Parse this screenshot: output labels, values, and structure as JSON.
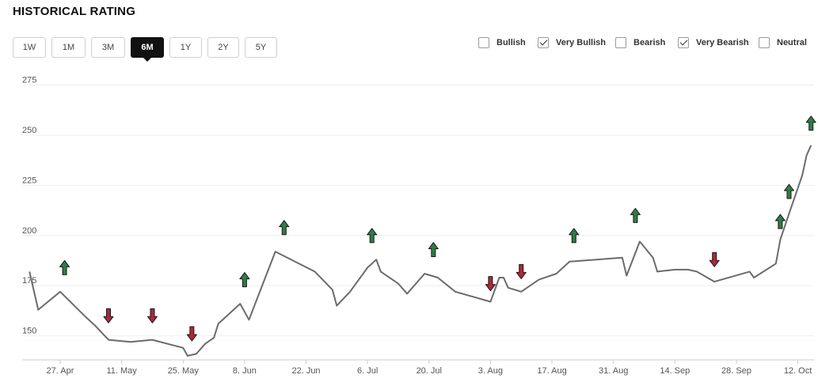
{
  "page": {
    "title": "HISTORICAL RATING"
  },
  "time_ranges": [
    {
      "label": "1W",
      "active": false
    },
    {
      "label": "1M",
      "active": false
    },
    {
      "label": "3M",
      "active": false
    },
    {
      "label": "6M",
      "active": true
    },
    {
      "label": "1Y",
      "active": false
    },
    {
      "label": "2Y",
      "active": false
    },
    {
      "label": "5Y",
      "active": false
    }
  ],
  "filters": [
    {
      "label": "Bullish",
      "checked": false
    },
    {
      "label": "Very Bullish",
      "checked": true
    },
    {
      "label": "Bearish",
      "checked": false
    },
    {
      "label": "Very Bearish",
      "checked": true
    },
    {
      "label": "Neutral",
      "checked": false
    }
  ],
  "colors": {
    "line": "#6b6b6b",
    "very_bullish_arrow": "#2e7d46",
    "very_bearish_arrow": "#b0253a",
    "grid": "#eeeeee"
  },
  "chart_data": {
    "type": "line",
    "title": "",
    "xlabel": "",
    "ylabel": "",
    "ylim": [
      138,
      278
    ],
    "yticks": [
      150,
      175,
      200,
      225,
      250,
      275
    ],
    "x_tick_labels": [
      "27. Apr",
      "11. May",
      "25. May",
      "8. Jun",
      "22. Jun",
      "6. Jul",
      "20. Jul",
      "3. Aug",
      "17. Aug",
      "31. Aug",
      "14. Sep",
      "28. Sep",
      "12. Oct"
    ],
    "x_tick_days": [
      0,
      14,
      28,
      42,
      56,
      70,
      84,
      98,
      112,
      126,
      140,
      154,
      168
    ],
    "grid": true,
    "series": [
      {
        "points": [
          [
            -7,
            182
          ],
          [
            -5,
            163
          ],
          [
            0,
            172
          ],
          [
            6,
            159
          ],
          [
            8,
            155
          ],
          [
            11,
            148
          ],
          [
            16,
            147
          ],
          [
            21,
            148
          ],
          [
            28,
            144
          ],
          [
            29,
            140
          ],
          [
            31,
            141
          ],
          [
            33,
            146
          ],
          [
            35,
            149
          ],
          [
            36,
            156
          ],
          [
            41,
            166
          ],
          [
            43,
            158
          ],
          [
            49,
            192
          ],
          [
            58,
            182
          ],
          [
            62,
            173
          ],
          [
            63,
            165
          ],
          [
            66,
            172
          ],
          [
            70,
            184
          ],
          [
            72,
            188
          ],
          [
            73,
            182
          ],
          [
            77,
            176
          ],
          [
            79,
            171
          ],
          [
            83,
            181
          ],
          [
            86,
            179
          ],
          [
            90,
            172
          ],
          [
            98,
            167
          ],
          [
            100,
            179
          ],
          [
            101,
            179
          ],
          [
            102,
            174
          ],
          [
            105,
            172
          ],
          [
            109,
            178
          ],
          [
            113,
            181
          ],
          [
            116,
            187
          ],
          [
            128,
            189
          ],
          [
            129,
            180
          ],
          [
            132,
            197
          ],
          [
            135,
            189
          ],
          [
            136,
            182
          ],
          [
            140,
            183
          ],
          [
            143,
            183
          ],
          [
            145,
            182
          ],
          [
            149,
            177
          ],
          [
            157,
            182
          ],
          [
            158,
            179
          ],
          [
            163,
            186
          ],
          [
            164,
            198
          ],
          [
            166,
            211
          ],
          [
            169,
            230
          ],
          [
            170,
            240
          ],
          [
            171,
            245
          ]
        ]
      }
    ],
    "markers": [
      {
        "day": 1,
        "value": 184,
        "kind": "very_bullish"
      },
      {
        "day": 11,
        "value": 160,
        "kind": "very_bearish"
      },
      {
        "day": 21,
        "value": 160,
        "kind": "very_bearish"
      },
      {
        "day": 30,
        "value": 151,
        "kind": "very_bearish"
      },
      {
        "day": 42,
        "value": 178,
        "kind": "very_bullish"
      },
      {
        "day": 51,
        "value": 204,
        "kind": "very_bullish"
      },
      {
        "day": 71,
        "value": 200,
        "kind": "very_bullish"
      },
      {
        "day": 85,
        "value": 193,
        "kind": "very_bullish"
      },
      {
        "day": 98,
        "value": 176,
        "kind": "very_bearish"
      },
      {
        "day": 105,
        "value": 182,
        "kind": "very_bearish"
      },
      {
        "day": 117,
        "value": 200,
        "kind": "very_bullish"
      },
      {
        "day": 131,
        "value": 210,
        "kind": "very_bullish"
      },
      {
        "day": 149,
        "value": 188,
        "kind": "very_bearish"
      },
      {
        "day": 164,
        "value": 207,
        "kind": "very_bullish"
      },
      {
        "day": 166,
        "value": 222,
        "kind": "very_bullish"
      },
      {
        "day": 171,
        "value": 256,
        "kind": "very_bullish"
      }
    ]
  }
}
